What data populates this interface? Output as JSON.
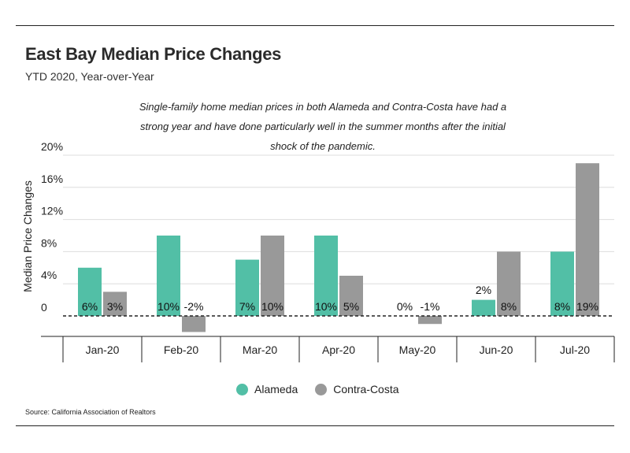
{
  "header": {
    "title": "East Bay Median Price Changes",
    "subtitle": "YTD 2020, Year-over-Year",
    "annotation": "Single-family home median prices in both Alameda and Contra-Costa have had a strong year and have done particularly well in the summer months after the initial shock of the pandemic.",
    "source": "Source:  California Association of Realtors"
  },
  "colors": {
    "alameda": "#52bfa6",
    "contra_costa": "#999999",
    "grid": "#dddddd",
    "axis": "#222222"
  },
  "chart_data": {
    "type": "bar",
    "title": "East Bay Median Price Changes",
    "subtitle": "YTD 2020, Year-over-Year",
    "xlabel": "",
    "ylabel": "Median Price Changes",
    "categories": [
      "Jan-20",
      "Feb-20",
      "Mar-20",
      "Apr-20",
      "May-20",
      "Jun-20",
      "Jul-20"
    ],
    "series": [
      {
        "name": "Alameda",
        "values": [
          6,
          10,
          7,
          10,
          0,
          2,
          8
        ],
        "labels": [
          "6%",
          "10%",
          "7%",
          "10%",
          "0%",
          "2%",
          "8%"
        ]
      },
      {
        "name": "Contra-Costa",
        "values": [
          3,
          -2,
          10,
          5,
          -1,
          8,
          19
        ],
        "labels": [
          "3%",
          "-2%",
          "10%",
          "5%",
          "-1%",
          "8%",
          "19%"
        ]
      }
    ],
    "ylim": [
      -2.5,
      20
    ],
    "yticks": [
      0,
      4,
      8,
      12,
      16,
      20
    ],
    "ytick_labels": [
      "0",
      "4%",
      "8%",
      "12%",
      "16%",
      "20%"
    ],
    "grid": true,
    "legend": "bottom-center"
  }
}
